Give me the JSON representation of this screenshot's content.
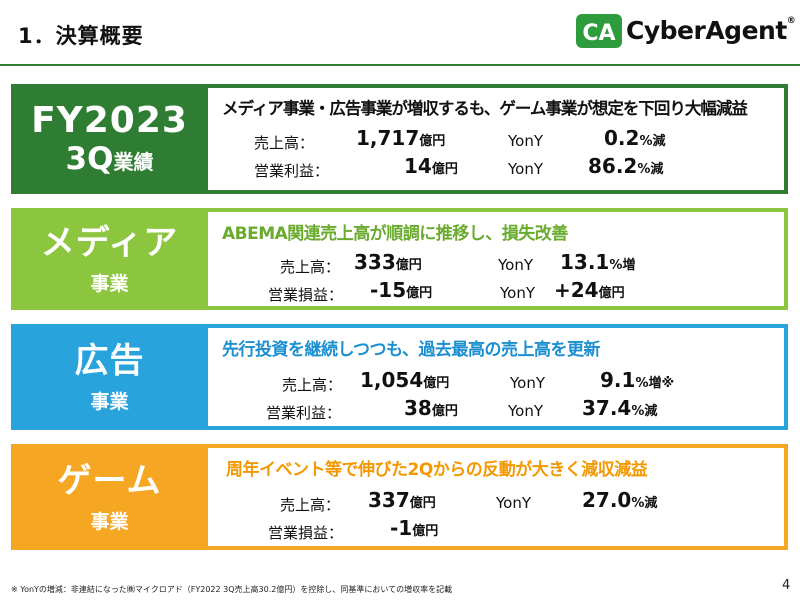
{
  "header": {
    "title": "1．決算概要",
    "logo_text": "CyberAgent",
    "logo_mark": "CA",
    "logo_reg": "®"
  },
  "colors": {
    "overview": "#2e7d32",
    "media": "#8cc63f",
    "ads": "#29a3dc",
    "game": "#f5a623",
    "headline_media": "#6aab2e",
    "headline_ads": "#1b8fd0",
    "headline_game": "#f39800"
  },
  "overview": {
    "label_1": "FY2023",
    "label_2": "3Q",
    "label_2_suffix": "業績",
    "headline": "メディア事業・広告事業が増収するも、ゲーム事業が想定を下回り大幅減益",
    "row1": {
      "label": "売上高：",
      "value": "1,717",
      "unit": "億円",
      "yoy_label": "YonY",
      "yoy_value": "0.2",
      "yoy_unit": "%減"
    },
    "row2": {
      "label": "営業利益：",
      "value": "14",
      "unit": "億円",
      "yoy_label": "YonY",
      "yoy_value": "86.2",
      "yoy_unit": "%減"
    }
  },
  "media": {
    "label_1": "メディア",
    "label_2": "事業",
    "headline": "ABEMA関連売上高が順調に推移し、損失改善",
    "row1": {
      "label": "売上高：",
      "value": "333",
      "unit": "億円",
      "yoy_label": "YonY",
      "yoy_value": "13.1",
      "yoy_unit": "%増"
    },
    "row2": {
      "label": "営業損益：",
      "value": "-15",
      "unit": "億円",
      "yoy_label": "YonY",
      "yoy_value": "+24",
      "yoy_unit": "億円"
    }
  },
  "ads": {
    "label_1": "広告",
    "label_2": "事業",
    "headline": "先行投資を継続しつつも、過去最高の売上高を更新",
    "row1": {
      "label": "売上高：",
      "value": "1,054",
      "unit": "億円",
      "yoy_label": "YonY",
      "yoy_value": "9.1",
      "yoy_unit": "%増※"
    },
    "row2": {
      "label": "営業利益：",
      "value": "38",
      "unit": "億円",
      "yoy_label": "YonY",
      "yoy_value": "37.4",
      "yoy_unit": "%減"
    }
  },
  "game": {
    "label_1": "ゲーム",
    "label_2": "事業",
    "headline": "周年イベント等で伸びた2Qからの反動が大きく減収減益",
    "row1": {
      "label": "売上高：",
      "value": "337",
      "unit": "億円",
      "yoy_label": "YonY",
      "yoy_value": "27.0",
      "yoy_unit": "%減"
    },
    "row2": {
      "label": "営業損益：",
      "value": "-1",
      "unit": "億円"
    }
  },
  "footer": {
    "note": "※ YonYの増減：非連結になった㈱マイクロアド（FY2022 3Q売上高30.2億円）を控除し、同基準においての増収率を記載",
    "page": "4"
  }
}
